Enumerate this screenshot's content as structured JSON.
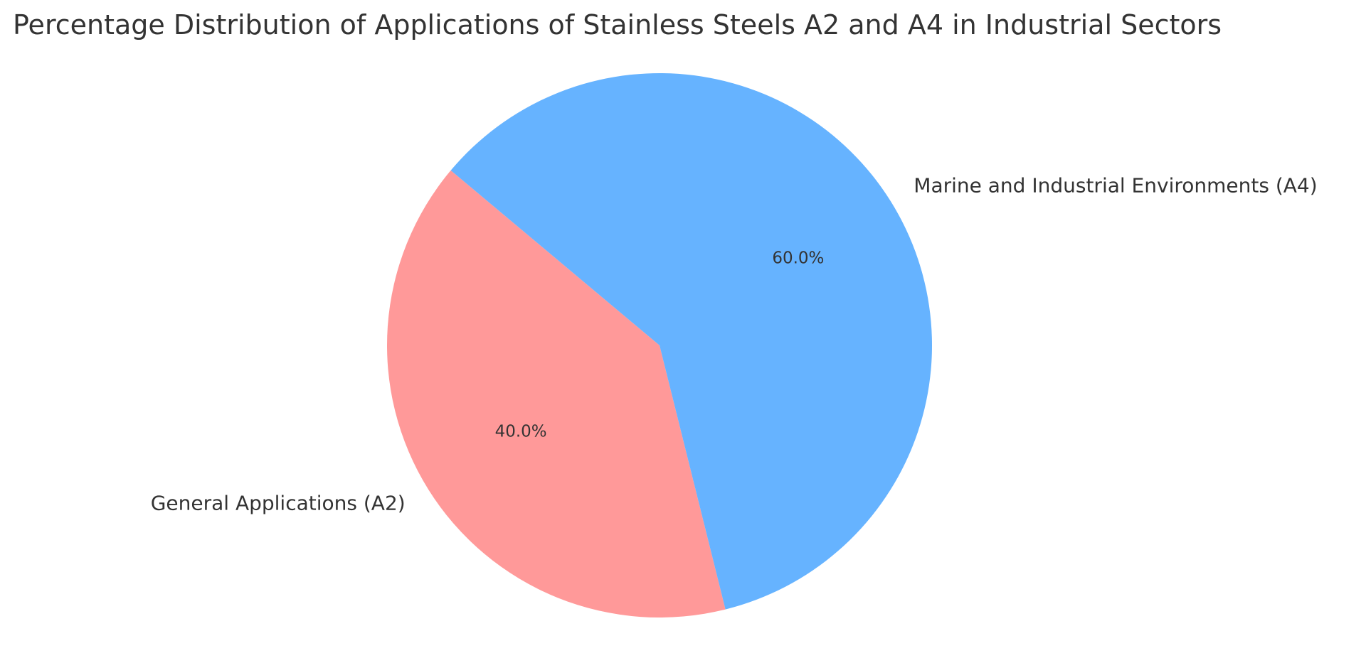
{
  "chart_data": {
    "type": "pie",
    "title": "Percentage Distribution of Applications of Stainless Steels A2 and A4 in Industrial Sectors",
    "slices": [
      {
        "label": "General Applications (A2)",
        "value": 40.0,
        "pct_label": "40.0%",
        "color": "#ff9999"
      },
      {
        "label": "Marine and Industrial Environments (A4)",
        "value": 60.0,
        "pct_label": "60.0%",
        "color": "#66b3ff"
      }
    ],
    "start_angle_deg": 140,
    "direction": "counterclockwise",
    "legend": "none"
  }
}
